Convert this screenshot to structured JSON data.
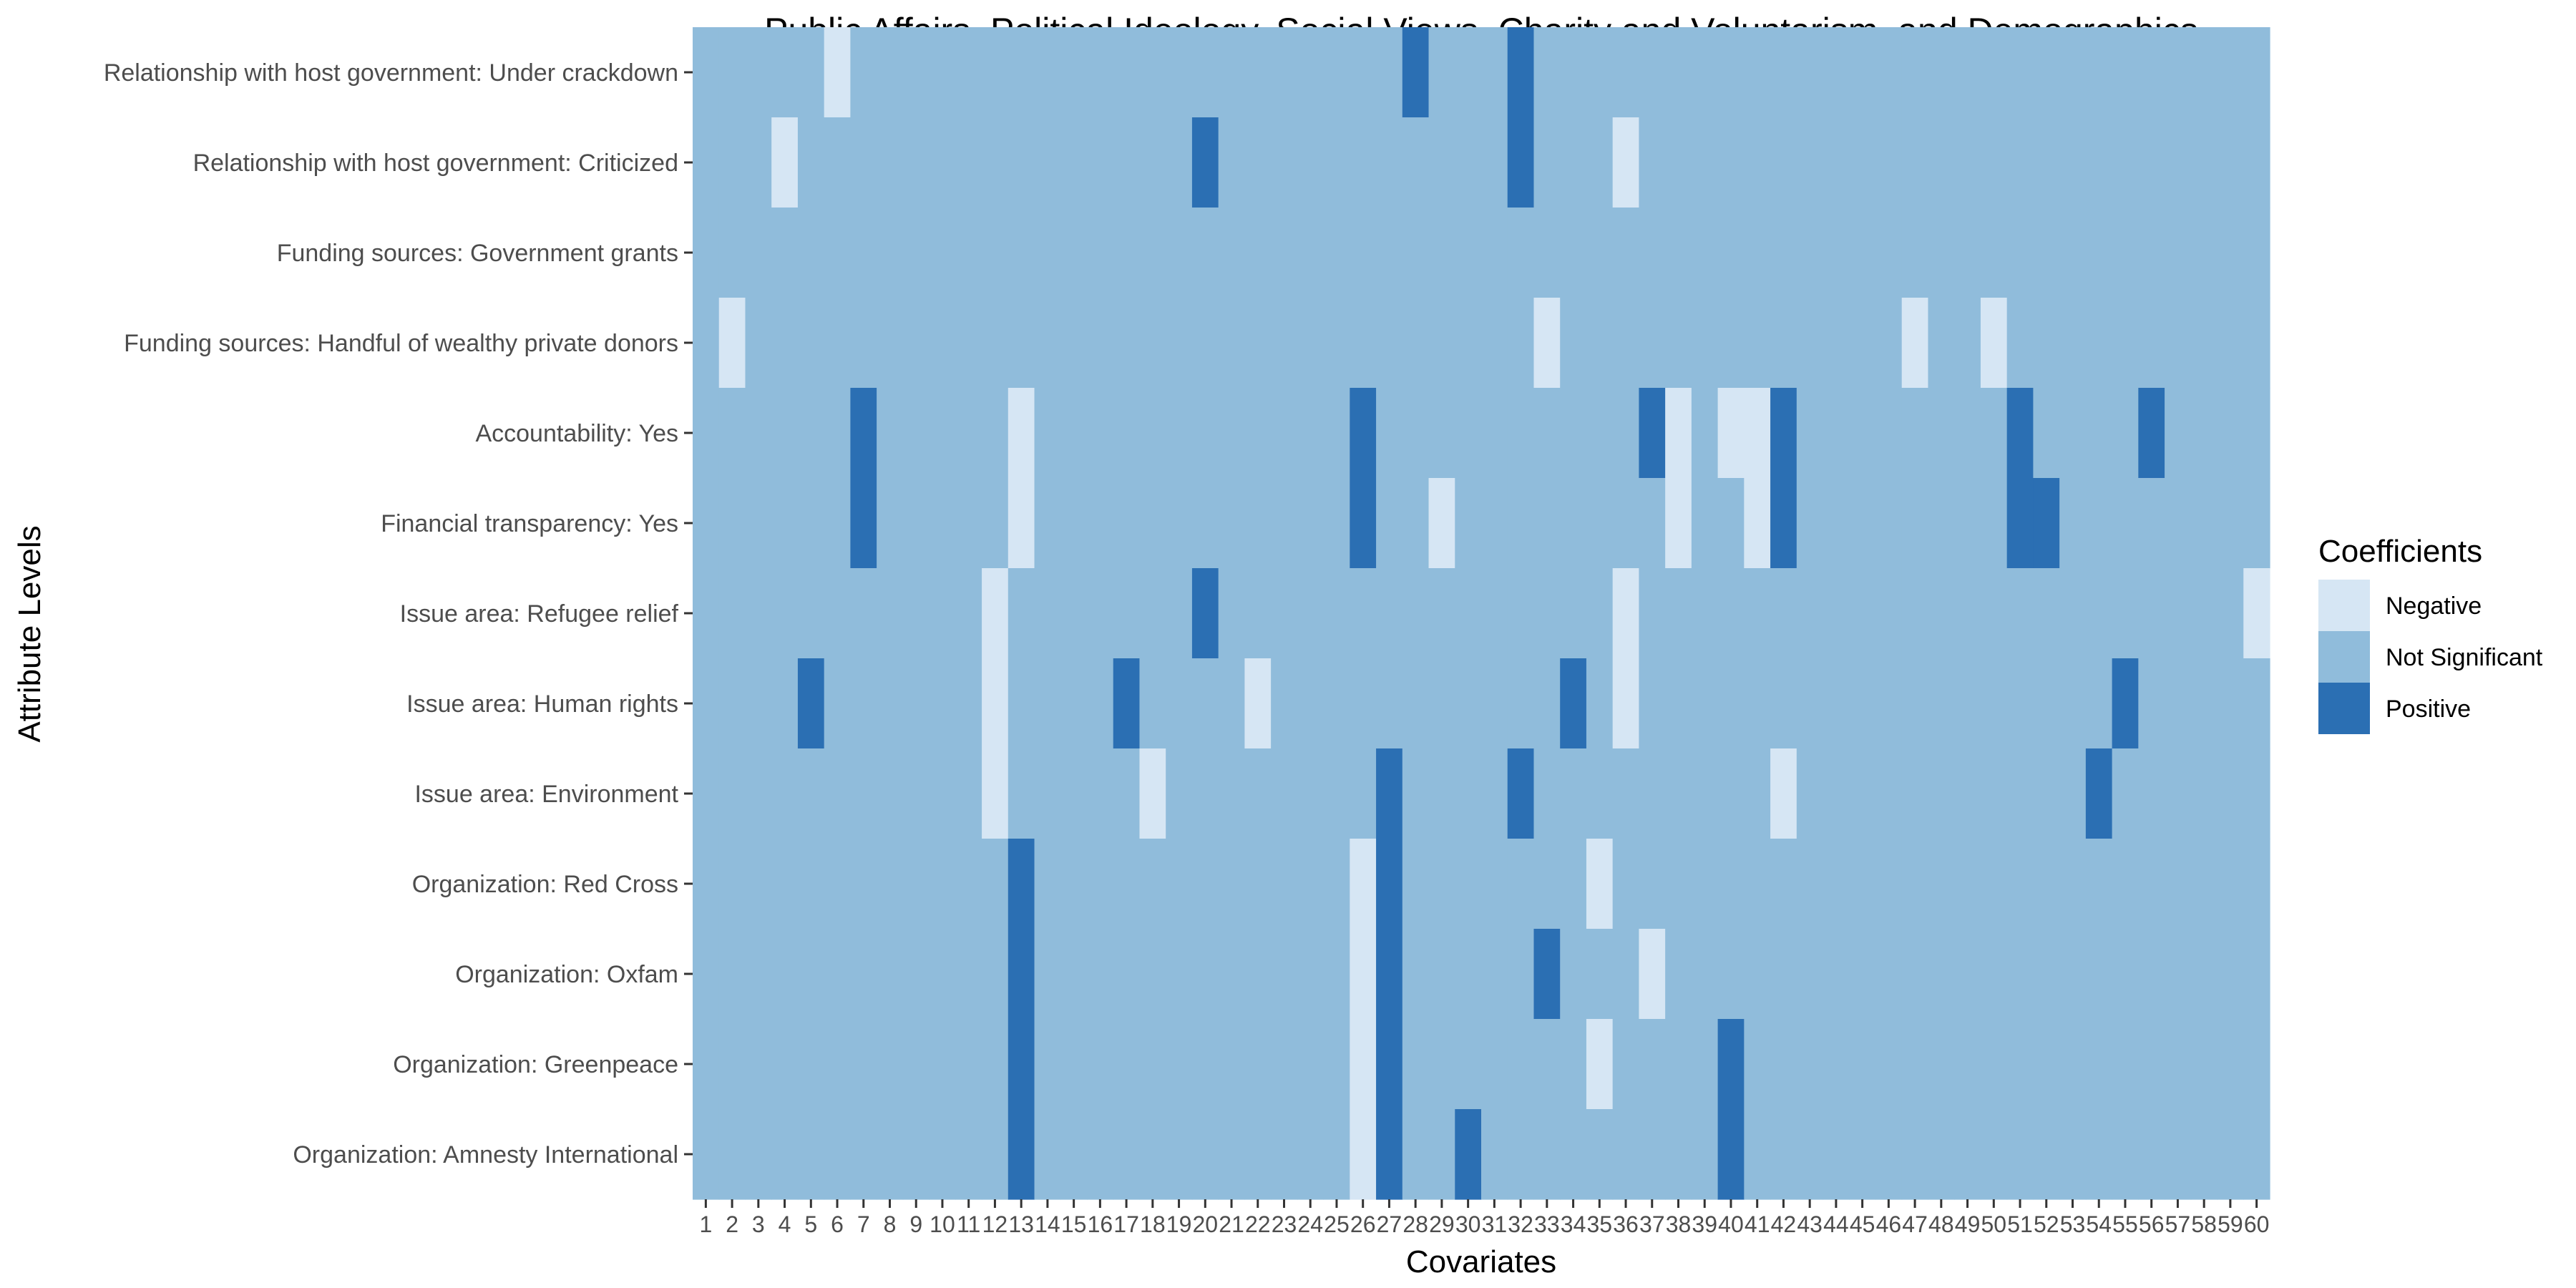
{
  "chart_data": {
    "type": "heatmap",
    "title": "Public Affairs, Political Ideology, Social Views, Charity and Voluntarism, and Demographics",
    "xlabel": "Covariates",
    "ylabel": "Attribute Levels",
    "x_categories": [
      "1",
      "2",
      "3",
      "4",
      "5",
      "6",
      "7",
      "8",
      "9",
      "10",
      "11",
      "12",
      "13",
      "14",
      "15",
      "16",
      "17",
      "18",
      "19",
      "20",
      "21",
      "22",
      "23",
      "24",
      "25",
      "26",
      "27",
      "28",
      "29",
      "30",
      "31",
      "32",
      "33",
      "34",
      "35",
      "36",
      "37",
      "38",
      "39",
      "40",
      "41",
      "42",
      "43",
      "44",
      "45",
      "46",
      "47",
      "48",
      "49",
      "50",
      "51",
      "52",
      "53",
      "54",
      "55",
      "56",
      "57",
      "58",
      "59",
      "60"
    ],
    "y_categories": [
      "Relationship with host government: Under crackdown",
      "Relationship with host government: Criticized",
      "Funding sources: Government grants",
      "Funding sources: Handful of wealthy private donors",
      "Accountability: Yes",
      "Financial transparency: Yes",
      "Issue area: Refugee relief",
      "Issue area: Human rights",
      "Issue area: Environment",
      "Organization: Red Cross",
      "Organization: Oxfam",
      "Organization: Greenpeace",
      "Organization: Amnesty International"
    ],
    "default_value": "Not Significant",
    "cells": [
      {
        "row": "Relationship with host government: Under crackdown",
        "negative": [
          6
        ],
        "positive": [
          28,
          32
        ]
      },
      {
        "row": "Relationship with host government: Criticized",
        "negative": [
          4,
          36
        ],
        "positive": [
          20,
          32
        ]
      },
      {
        "row": "Funding sources: Government grants",
        "negative": [],
        "positive": []
      },
      {
        "row": "Funding sources: Handful of wealthy private donors",
        "negative": [
          2,
          33,
          47,
          50
        ],
        "positive": []
      },
      {
        "row": "Accountability: Yes",
        "negative": [
          13,
          38,
          40,
          41
        ],
        "positive": [
          7,
          26,
          37,
          42,
          51,
          56
        ]
      },
      {
        "row": "Financial transparency: Yes",
        "negative": [
          13,
          29,
          38,
          41
        ],
        "positive": [
          7,
          26,
          42,
          51,
          52
        ]
      },
      {
        "row": "Issue area: Refugee relief",
        "negative": [
          12,
          36,
          60
        ],
        "positive": [
          20
        ]
      },
      {
        "row": "Issue area: Human rights",
        "negative": [
          12,
          22,
          36
        ],
        "positive": [
          5,
          17,
          34,
          55
        ]
      },
      {
        "row": "Issue area: Environment",
        "negative": [
          12,
          18,
          42
        ],
        "positive": [
          27,
          32,
          54
        ]
      },
      {
        "row": "Organization: Red Cross",
        "negative": [
          26,
          35
        ],
        "positive": [
          13,
          27
        ]
      },
      {
        "row": "Organization: Oxfam",
        "negative": [
          26,
          37
        ],
        "positive": [
          13,
          27,
          33
        ]
      },
      {
        "row": "Organization: Greenpeace",
        "negative": [
          26,
          35
        ],
        "positive": [
          13,
          27,
          40
        ]
      },
      {
        "row": "Organization: Amnesty International",
        "negative": [
          26
        ],
        "positive": [
          13,
          27,
          30,
          40
        ]
      }
    ],
    "legend": {
      "title": "Coefficients",
      "placement": "right",
      "entries": [
        {
          "label": "Negative",
          "color": "#d6e6f4"
        },
        {
          "label": "Not Significant",
          "color": "#90bcdb"
        },
        {
          "label": "Positive",
          "color": "#2b6fb3"
        }
      ]
    },
    "grid": false
  }
}
